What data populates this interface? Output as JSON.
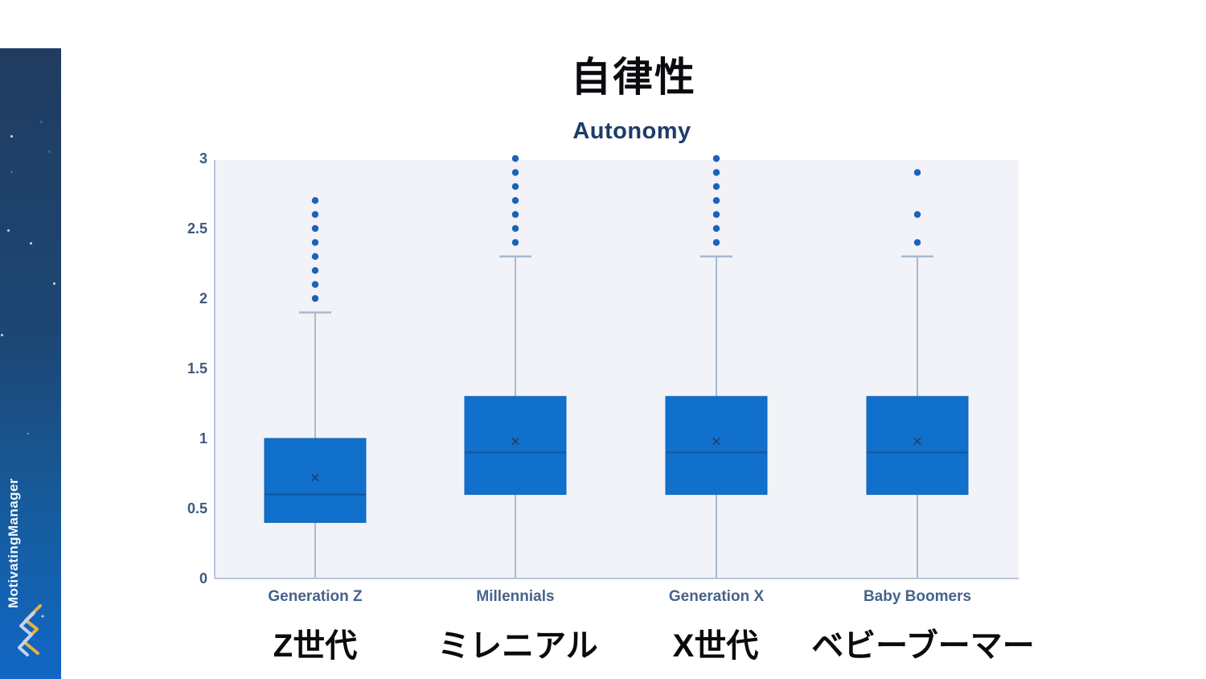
{
  "page": {
    "title_ja": "自律性",
    "brand": "MotivatingManager"
  },
  "chart_data": {
    "type": "boxplot",
    "title": "Autonomy",
    "categories": [
      "Generation Z",
      "Millennials",
      "Generation X",
      "Baby Boomers"
    ],
    "categories_ja": [
      "Z世代",
      "ミレニアル",
      "X世代",
      "ベビーブーマー"
    ],
    "ylim": [
      0,
      3
    ],
    "yticks": [
      3,
      2.5,
      2,
      1.5,
      1,
      0.5,
      0
    ],
    "grid": false,
    "legend": "none",
    "series": [
      {
        "name": "Generation Z",
        "name_ja": "Z世代",
        "whisker_low": 0,
        "q1": 0.4,
        "median": 0.6,
        "q3": 1.0,
        "whisker_high": 1.9,
        "mean": 0.72,
        "outliers": [
          2.0,
          2.1,
          2.2,
          2.3,
          2.4,
          2.5,
          2.6,
          2.7
        ]
      },
      {
        "name": "Millennials",
        "name_ja": "ミレニアル",
        "whisker_low": 0,
        "q1": 0.6,
        "median": 0.9,
        "q3": 1.3,
        "whisker_high": 2.3,
        "mean": 0.98,
        "outliers": [
          2.4,
          2.5,
          2.6,
          2.7,
          2.8,
          2.9,
          3.0
        ]
      },
      {
        "name": "Generation X",
        "name_ja": "X世代",
        "whisker_low": 0,
        "q1": 0.6,
        "median": 0.9,
        "q3": 1.3,
        "whisker_high": 2.3,
        "mean": 0.98,
        "outliers": [
          2.4,
          2.5,
          2.6,
          2.7,
          2.8,
          2.9,
          3.0
        ]
      },
      {
        "name": "Baby Boomers",
        "name_ja": "ベビーブーマー",
        "whisker_low": 0,
        "q1": 0.6,
        "median": 0.9,
        "q3": 1.3,
        "whisker_high": 2.3,
        "mean": 0.98,
        "outliers": [
          2.4,
          2.6,
          2.9
        ]
      }
    ],
    "colors": {
      "box_fill": "#1170cc",
      "box_border": "#0f65b8",
      "median_line": "#15589e",
      "mean_marker": "#1d4370",
      "whisker": "#a9bacf",
      "outlier_dot": "#1a63b8",
      "plot_background": "#f1f3f9",
      "axis_line": "#b9c4d6",
      "tick_label": "#3d5a80",
      "category_label": "#46638b"
    }
  },
  "sidebar": {
    "logo_yellow": "#e6b33d",
    "logo_lavender": "#c7d3f2"
  }
}
